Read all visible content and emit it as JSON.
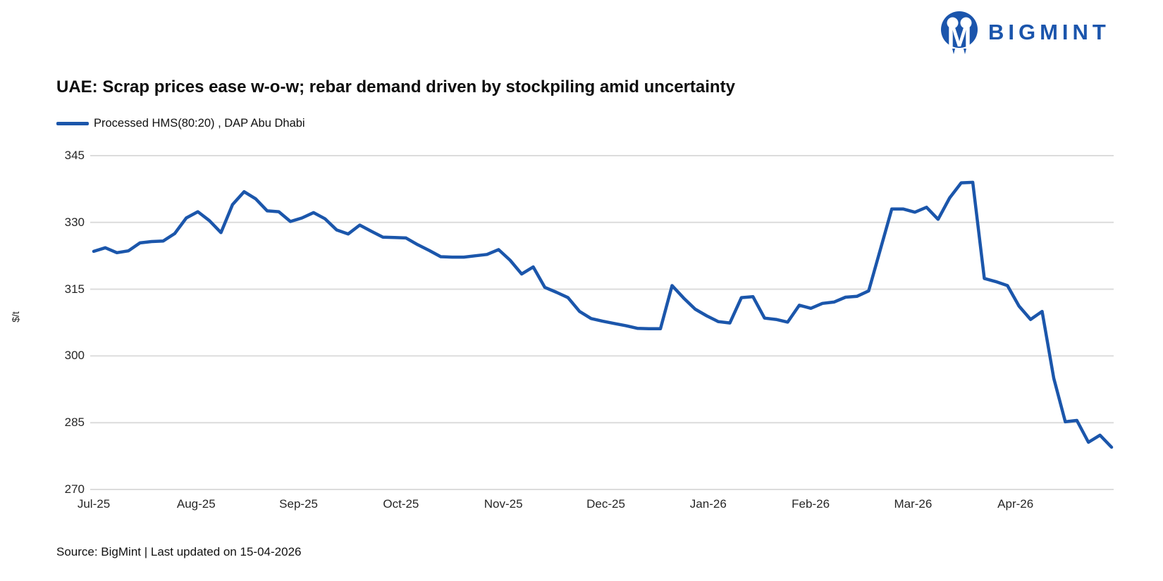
{
  "logo": {
    "brand": "BIGMINT",
    "color": "#1b55ac"
  },
  "header": {
    "title": "UAE: Scrap prices ease w-o-w; rebar demand driven by stockpiling amid uncertainty"
  },
  "legend": {
    "label": "Processed HMS(80:20) , DAP Abu Dhabi"
  },
  "axes": {
    "ylabel": "$/t"
  },
  "footer": {
    "source": "Source: BigMint | Last updated on 15-04-2026"
  },
  "colors": {
    "line": "#1b56ab",
    "grid": "#dcdcdc",
    "brand": "#1b55ac"
  },
  "chart_data": {
    "type": "line",
    "title": "UAE: Scrap prices ease w-o-w; rebar demand driven by stockpiling amid uncertainty",
    "ylabel": "$/t",
    "xlabel": "",
    "ylim": [
      270,
      345
    ],
    "y_ticks": [
      270,
      285,
      300,
      315,
      330,
      345
    ],
    "x_tick_labels": [
      "Jul-25",
      "Aug-25",
      "Sep-25",
      "Oct-25",
      "Nov-25",
      "Dec-25",
      "Jan-26",
      "Feb-26",
      "Mar-26",
      "Apr-26"
    ],
    "grid": "horizontal",
    "legend_position": "top-left",
    "series": [
      {
        "name": "Processed HMS(80:20) , DAP Abu Dhabi",
        "values": [
          323.5,
          324.3,
          323.2,
          323.6,
          325.4,
          325.7,
          325.8,
          327.5,
          331.0,
          332.4,
          330.4,
          327.7,
          334.0,
          336.9,
          335.3,
          332.6,
          332.4,
          330.2,
          331.0,
          332.2,
          330.8,
          328.3,
          327.4,
          329.4,
          328.0,
          326.7,
          326.6,
          326.5,
          325.0,
          323.7,
          322.3,
          322.2,
          322.2,
          322.5,
          322.8,
          323.9,
          321.5,
          318.4,
          320.0,
          315.4,
          314.3,
          313.1,
          310.0,
          308.4,
          307.8,
          307.3,
          306.8,
          306.2,
          306.1,
          306.1,
          315.8,
          313.0,
          310.5,
          309.0,
          307.7,
          307.4,
          313.1,
          313.3,
          308.5,
          308.2,
          307.6,
          311.4,
          310.7,
          311.8,
          312.1,
          313.2,
          313.4,
          314.6,
          323.8,
          333.0,
          333.0,
          332.3,
          333.4,
          330.7,
          335.5,
          338.9,
          339.0,
          317.4,
          316.7,
          315.8,
          311.2,
          308.2,
          310.0,
          295.0,
          285.2,
          285.5,
          280.6,
          282.2,
          279.5
        ]
      }
    ]
  }
}
